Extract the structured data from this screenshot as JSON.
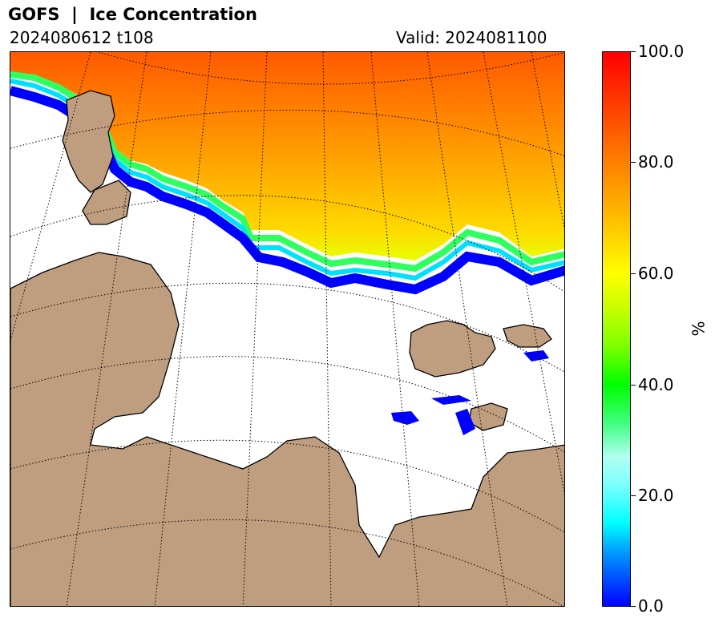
{
  "header": {
    "title": "GOFS  |  Ice Concentration",
    "run": "2024080612 t108",
    "valid": "Valid: 2024081100"
  },
  "colorbar": {
    "label": "%",
    "ticks": [
      "100.0",
      "80.0",
      "60.0",
      "40.0",
      "20.0",
      "0.0"
    ],
    "range": [
      0,
      100
    ],
    "colors": [
      "#0000ff",
      "#00ffff",
      "#00ff00",
      "#ffff00",
      "#ff8000",
      "#ff0000"
    ]
  },
  "map": {
    "land_color": "#bf9e80",
    "water_color": "#ffffff",
    "grid_style": "dotted"
  }
}
